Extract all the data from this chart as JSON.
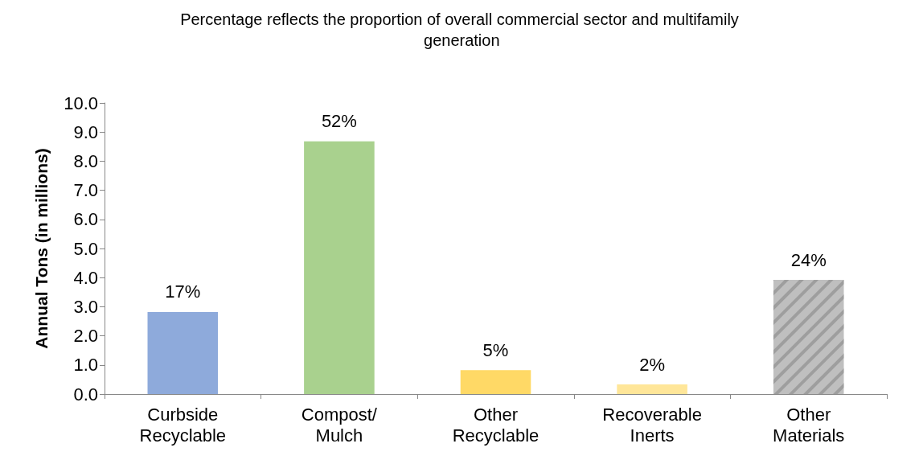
{
  "chart_data": {
    "type": "bar",
    "title": "Percentage reflects the proportion of overall commercial sector and multifamily generation",
    "ylabel": "Annual Tons (in millions)",
    "categories": [
      "Curbside\nRecyclable",
      "Compost/\nMulch",
      "Other\nRecyclable",
      "Recoverable\nInerts",
      "Other\nMaterials"
    ],
    "values": [
      2.82,
      8.68,
      0.82,
      0.33,
      3.92
    ],
    "colors": [
      "#8eaadb",
      "#a9d18e",
      "#ffd966",
      "#ffe699",
      "#bfbfbf"
    ],
    "annotations": [
      {
        "text": "17%",
        "x": "Curbside\nRecyclable",
        "y": 2.82
      },
      {
        "text": "52%",
        "x": "Compost/\nMulch",
        "y": 8.68
      },
      {
        "text": "5%",
        "x": "Other\nRecyclable",
        "y": 0.82
      },
      {
        "text": "2%",
        "x": "Recoverable\nInerts",
        "y": 0.33
      },
      {
        "text": "24%",
        "x": "Other\nMaterials",
        "y": 3.92
      }
    ],
    "ylim": [
      0,
      10
    ],
    "yticks": [
      {
        "value": 0,
        "label": "0.0"
      },
      {
        "value": 1,
        "label": "1.0"
      },
      {
        "value": 2,
        "label": "2.0"
      },
      {
        "value": 3,
        "label": "3.0"
      },
      {
        "value": 4,
        "label": "4.0"
      },
      {
        "value": 5,
        "label": "5.0"
      },
      {
        "value": 6,
        "label": "6.0"
      },
      {
        "value": 7,
        "label": "7.0"
      },
      {
        "value": 8,
        "label": "8.0"
      },
      {
        "value": 9,
        "label": "9.0"
      },
      {
        "value": 10,
        "label": "10.0"
      }
    ],
    "grid": false
  }
}
